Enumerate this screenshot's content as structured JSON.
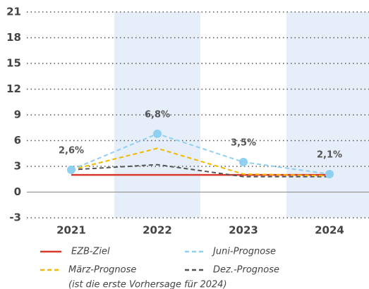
{
  "chart_data": {
    "type": "line",
    "categories": [
      "2021",
      "2022",
      "2023",
      "2024"
    ],
    "series": [
      {
        "name": "EZB-Ziel",
        "color": "#d93a2b",
        "dash": false,
        "values": [
          2,
          2,
          2,
          2
        ]
      },
      {
        "name": "Juni-Prognose",
        "color": "#8fd0f0",
        "dash": true,
        "markers": true,
        "values": [
          2.6,
          6.8,
          3.5,
          2.1
        ],
        "value_labels": [
          "2,6%",
          "6,8%",
          "3,5%",
          "2,1%"
        ]
      },
      {
        "name": "März-Prognose",
        "color": "#f3b700",
        "dash": true,
        "values": [
          2.6,
          5.1,
          2.1,
          1.9
        ]
      },
      {
        "name": "Dez.-Prognose",
        "color": "#555555",
        "dash": true,
        "values": [
          2.6,
          3.2,
          1.8,
          1.8
        ]
      }
    ],
    "legend_note": "(ist die erste Vorhersage für 2024)",
    "ylim": [
      -3,
      21
    ],
    "yticks": [
      -3,
      0,
      3,
      6,
      9,
      12,
      15,
      18,
      21
    ],
    "grid": true
  }
}
